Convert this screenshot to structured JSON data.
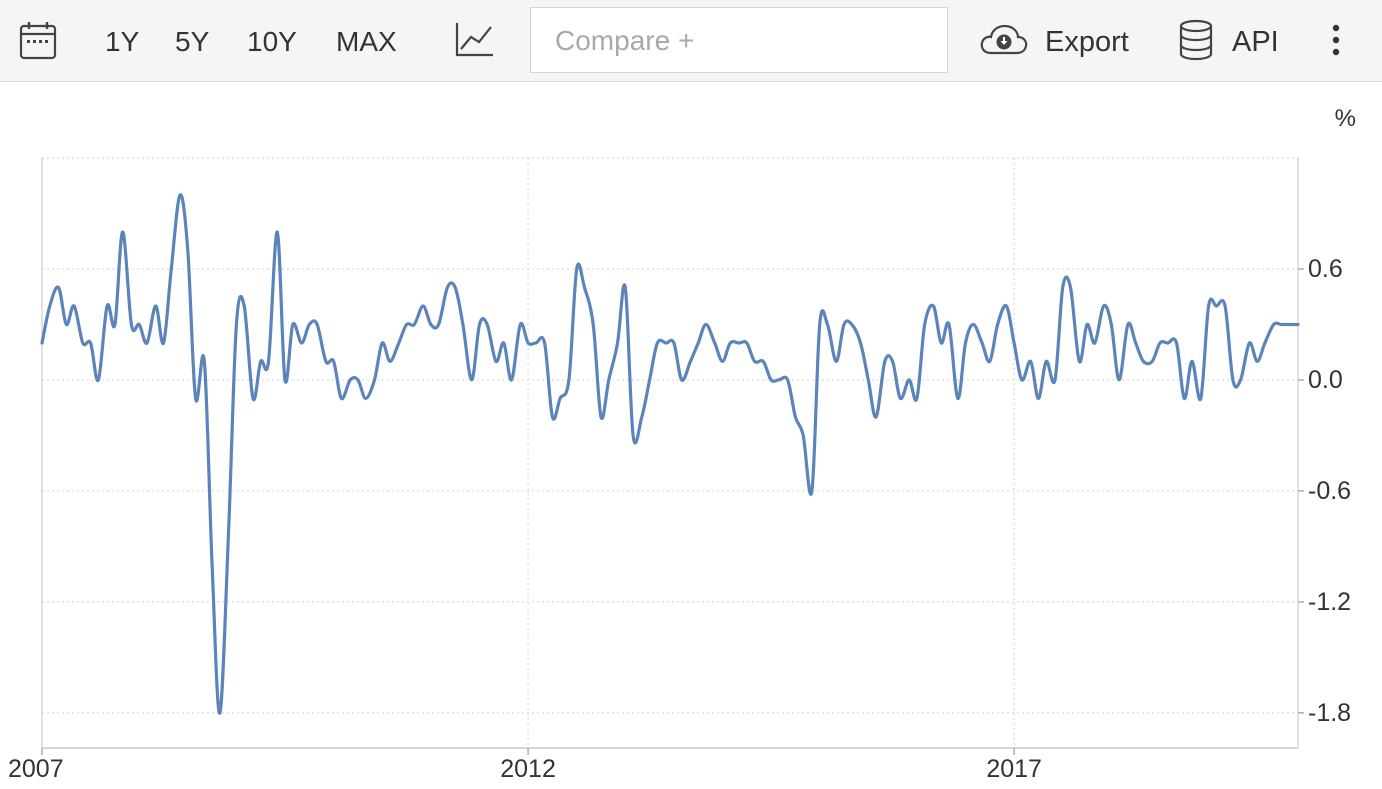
{
  "toolbar": {
    "calendar_icon": "calendar-icon",
    "ranges": [
      "1Y",
      "5Y",
      "10Y",
      "MAX"
    ],
    "chart_type_icon": "line-chart-icon",
    "compare_placeholder": "Compare +",
    "export_label": "Export",
    "export_icon": "cloud-download-icon",
    "api_label": "API",
    "api_icon": "database-icon",
    "more_icon": "vertical-dots-icon"
  },
  "colors": {
    "line": "#5b84ba",
    "grid": "#d9d9d9",
    "toolbar_bg": "#f5f5f5"
  },
  "chart_data": {
    "type": "line",
    "unit_label": "%",
    "x_ticks": [
      "2007",
      "2012",
      "2017"
    ],
    "y_ticks": [
      "0.6",
      "0.0",
      "-0.6",
      "-1.2",
      "-1.8"
    ],
    "xlim": [
      2007.0,
      2019.92
    ],
    "ylim": [
      -1.99,
      1.2
    ],
    "grid": true,
    "series": [
      {
        "values": [
          [
            2007.0,
            0.2
          ],
          [
            2007.08,
            0.4
          ],
          [
            2007.17,
            0.5
          ],
          [
            2007.25,
            0.3
          ],
          [
            2007.33,
            0.4
          ],
          [
            2007.42,
            0.2
          ],
          [
            2007.5,
            0.2
          ],
          [
            2007.58,
            0.0
          ],
          [
            2007.67,
            0.4
          ],
          [
            2007.75,
            0.3
          ],
          [
            2007.83,
            0.8
          ],
          [
            2007.92,
            0.3
          ],
          [
            2008.0,
            0.3
          ],
          [
            2008.08,
            0.2
          ],
          [
            2008.17,
            0.4
          ],
          [
            2008.25,
            0.2
          ],
          [
            2008.33,
            0.6
          ],
          [
            2008.42,
            1.0
          ],
          [
            2008.5,
            0.7
          ],
          [
            2008.58,
            -0.1
          ],
          [
            2008.67,
            0.1
          ],
          [
            2008.75,
            -1.0
          ],
          [
            2008.83,
            -1.8
          ],
          [
            2008.92,
            -0.8
          ],
          [
            2009.0,
            0.3
          ],
          [
            2009.08,
            0.4
          ],
          [
            2009.17,
            -0.1
          ],
          [
            2009.25,
            0.1
          ],
          [
            2009.33,
            0.1
          ],
          [
            2009.42,
            0.8
          ],
          [
            2009.5,
            0.0
          ],
          [
            2009.58,
            0.3
          ],
          [
            2009.67,
            0.2
          ],
          [
            2009.75,
            0.3
          ],
          [
            2009.83,
            0.3
          ],
          [
            2009.92,
            0.1
          ],
          [
            2010.0,
            0.1
          ],
          [
            2010.08,
            -0.1
          ],
          [
            2010.17,
            0.0
          ],
          [
            2010.25,
            0.0
          ],
          [
            2010.33,
            -0.1
          ],
          [
            2010.42,
            0.0
          ],
          [
            2010.5,
            0.2
          ],
          [
            2010.58,
            0.1
          ],
          [
            2010.67,
            0.2
          ],
          [
            2010.75,
            0.3
          ],
          [
            2010.83,
            0.3
          ],
          [
            2010.92,
            0.4
          ],
          [
            2011.0,
            0.3
          ],
          [
            2011.08,
            0.3
          ],
          [
            2011.17,
            0.5
          ],
          [
            2011.25,
            0.5
          ],
          [
            2011.33,
            0.3
          ],
          [
            2011.42,
            0.0
          ],
          [
            2011.5,
            0.3
          ],
          [
            2011.58,
            0.3
          ],
          [
            2011.67,
            0.1
          ],
          [
            2011.75,
            0.2
          ],
          [
            2011.83,
            0.0
          ],
          [
            2011.92,
            0.3
          ],
          [
            2012.0,
            0.2
          ],
          [
            2012.08,
            0.2
          ],
          [
            2012.17,
            0.2
          ],
          [
            2012.25,
            -0.2
          ],
          [
            2012.33,
            -0.1
          ],
          [
            2012.42,
            0.0
          ],
          [
            2012.5,
            0.6
          ],
          [
            2012.58,
            0.5
          ],
          [
            2012.67,
            0.3
          ],
          [
            2012.75,
            -0.2
          ],
          [
            2012.83,
            0.0
          ],
          [
            2012.92,
            0.2
          ],
          [
            2013.0,
            0.5
          ],
          [
            2013.08,
            -0.3
          ],
          [
            2013.17,
            -0.2
          ],
          [
            2013.25,
            0.0
          ],
          [
            2013.33,
            0.2
          ],
          [
            2013.42,
            0.2
          ],
          [
            2013.5,
            0.2
          ],
          [
            2013.58,
            0.0
          ],
          [
            2013.67,
            0.1
          ],
          [
            2013.75,
            0.2
          ],
          [
            2013.83,
            0.3
          ],
          [
            2013.92,
            0.2
          ],
          [
            2014.0,
            0.1
          ],
          [
            2014.08,
            0.2
          ],
          [
            2014.17,
            0.2
          ],
          [
            2014.25,
            0.2
          ],
          [
            2014.33,
            0.1
          ],
          [
            2014.42,
            0.1
          ],
          [
            2014.5,
            0.0
          ],
          [
            2014.58,
            0.0
          ],
          [
            2014.67,
            0.0
          ],
          [
            2014.75,
            -0.2
          ],
          [
            2014.83,
            -0.3
          ],
          [
            2014.92,
            -0.6
          ],
          [
            2015.0,
            0.3
          ],
          [
            2015.08,
            0.3
          ],
          [
            2015.17,
            0.1
          ],
          [
            2015.25,
            0.3
          ],
          [
            2015.33,
            0.3
          ],
          [
            2015.42,
            0.2
          ],
          [
            2015.5,
            0.0
          ],
          [
            2015.58,
            -0.2
          ],
          [
            2015.67,
            0.1
          ],
          [
            2015.75,
            0.1
          ],
          [
            2015.83,
            -0.1
          ],
          [
            2015.92,
            0.0
          ],
          [
            2016.0,
            -0.1
          ],
          [
            2016.08,
            0.3
          ],
          [
            2016.17,
            0.4
          ],
          [
            2016.25,
            0.2
          ],
          [
            2016.33,
            0.3
          ],
          [
            2016.42,
            -0.1
          ],
          [
            2016.5,
            0.2
          ],
          [
            2016.58,
            0.3
          ],
          [
            2016.67,
            0.2
          ],
          [
            2016.75,
            0.1
          ],
          [
            2016.83,
            0.3
          ],
          [
            2016.92,
            0.4
          ],
          [
            2017.0,
            0.2
          ],
          [
            2017.08,
            0.0
          ],
          [
            2017.17,
            0.1
          ],
          [
            2017.25,
            -0.1
          ],
          [
            2017.33,
            0.1
          ],
          [
            2017.42,
            0.0
          ],
          [
            2017.5,
            0.5
          ],
          [
            2017.58,
            0.5
          ],
          [
            2017.67,
            0.1
          ],
          [
            2017.75,
            0.3
          ],
          [
            2017.83,
            0.2
          ],
          [
            2017.92,
            0.4
          ],
          [
            2018.0,
            0.3
          ],
          [
            2018.08,
            0.0
          ],
          [
            2018.17,
            0.3
          ],
          [
            2018.25,
            0.2
          ],
          [
            2018.33,
            0.1
          ],
          [
            2018.42,
            0.1
          ],
          [
            2018.5,
            0.2
          ],
          [
            2018.58,
            0.2
          ],
          [
            2018.67,
            0.2
          ],
          [
            2018.75,
            -0.1
          ],
          [
            2018.83,
            0.1
          ],
          [
            2018.92,
            -0.1
          ],
          [
            2019.0,
            0.4
          ],
          [
            2019.08,
            0.4
          ],
          [
            2019.17,
            0.4
          ],
          [
            2019.25,
            0.0
          ],
          [
            2019.33,
            0.0
          ],
          [
            2019.42,
            0.2
          ],
          [
            2019.5,
            0.1
          ],
          [
            2019.58,
            0.2
          ],
          [
            2019.67,
            0.3
          ],
          [
            2019.75,
            0.3
          ],
          [
            2019.83,
            0.3
          ],
          [
            2019.92,
            0.3
          ]
        ]
      }
    ]
  }
}
